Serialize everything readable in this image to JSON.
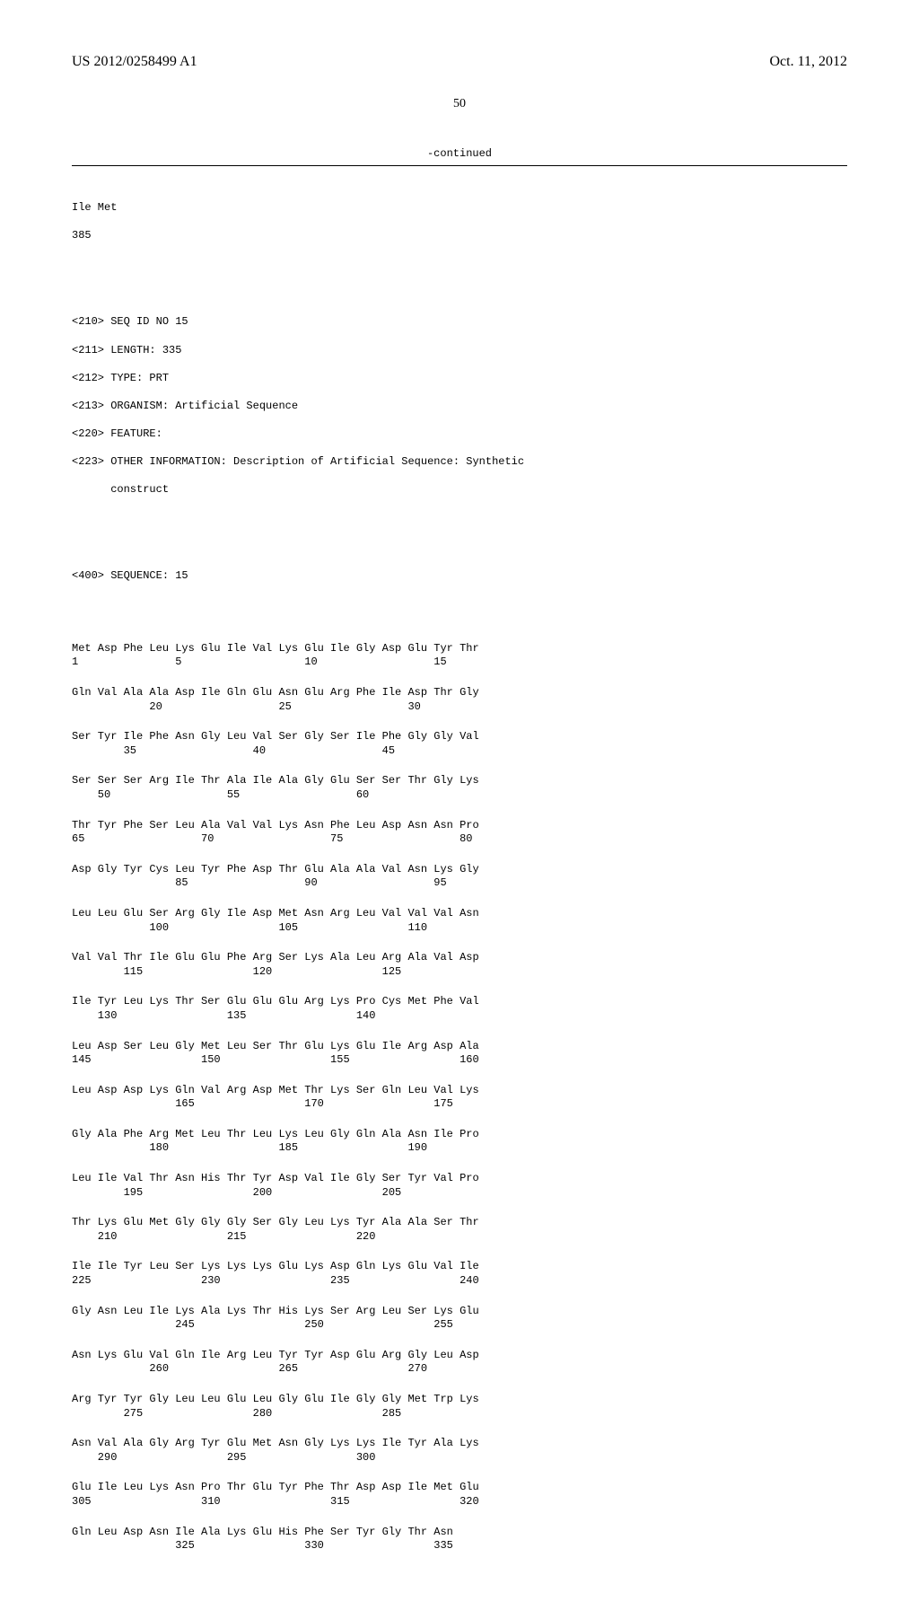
{
  "header": {
    "pub_id": "US 2012/0258499 A1",
    "pub_date": "Oct. 11, 2012"
  },
  "page_number": "50",
  "continued_label": "-continued",
  "preamble": {
    "residue_line": "Ile Met",
    "residue_num": "385"
  },
  "seq_header": {
    "seq_id": "<210> SEQ ID NO 15",
    "length": "<211> LENGTH: 335",
    "type": "<212> TYPE: PRT",
    "organism": "<213> ORGANISM: Artificial Sequence",
    "feature": "<220> FEATURE:",
    "other_info": "<223> OTHER INFORMATION: Description of Artificial Sequence: Synthetic",
    "other_info2": "      construct",
    "sequence_tag": "<400> SEQUENCE: 15"
  },
  "rows": [
    {
      "aa": "Met Asp Phe Leu Lys Glu Ile Val Lys Glu Ile Gly Asp Glu Tyr Thr",
      "nums": "1               5                   10                  15"
    },
    {
      "aa": "Gln Val Ala Ala Asp Ile Gln Glu Asn Glu Arg Phe Ile Asp Thr Gly",
      "nums": "            20                  25                  30"
    },
    {
      "aa": "Ser Tyr Ile Phe Asn Gly Leu Val Ser Gly Ser Ile Phe Gly Gly Val",
      "nums": "        35                  40                  45"
    },
    {
      "aa": "Ser Ser Ser Arg Ile Thr Ala Ile Ala Gly Glu Ser Ser Thr Gly Lys",
      "nums": "    50                  55                  60"
    },
    {
      "aa": "Thr Tyr Phe Ser Leu Ala Val Val Lys Asn Phe Leu Asp Asn Asn Pro",
      "nums": "65                  70                  75                  80"
    },
    {
      "aa": "Asp Gly Tyr Cys Leu Tyr Phe Asp Thr Glu Ala Ala Val Asn Lys Gly",
      "nums": "                85                  90                  95"
    },
    {
      "aa": "Leu Leu Glu Ser Arg Gly Ile Asp Met Asn Arg Leu Val Val Val Asn",
      "nums": "            100                 105                 110"
    },
    {
      "aa": "Val Val Thr Ile Glu Glu Phe Arg Ser Lys Ala Leu Arg Ala Val Asp",
      "nums": "        115                 120                 125"
    },
    {
      "aa": "Ile Tyr Leu Lys Thr Ser Glu Glu Glu Arg Lys Pro Cys Met Phe Val",
      "nums": "    130                 135                 140"
    },
    {
      "aa": "Leu Asp Ser Leu Gly Met Leu Ser Thr Glu Lys Glu Ile Arg Asp Ala",
      "nums": "145                 150                 155                 160"
    },
    {
      "aa": "Leu Asp Asp Lys Gln Val Arg Asp Met Thr Lys Ser Gln Leu Val Lys",
      "nums": "                165                 170                 175"
    },
    {
      "aa": "Gly Ala Phe Arg Met Leu Thr Leu Lys Leu Gly Gln Ala Asn Ile Pro",
      "nums": "            180                 185                 190"
    },
    {
      "aa": "Leu Ile Val Thr Asn His Thr Tyr Asp Val Ile Gly Ser Tyr Val Pro",
      "nums": "        195                 200                 205"
    },
    {
      "aa": "Thr Lys Glu Met Gly Gly Gly Ser Gly Leu Lys Tyr Ala Ala Ser Thr",
      "nums": "    210                 215                 220"
    },
    {
      "aa": "Ile Ile Tyr Leu Ser Lys Lys Lys Glu Lys Asp Gln Lys Glu Val Ile",
      "nums": "225                 230                 235                 240"
    },
    {
      "aa": "Gly Asn Leu Ile Lys Ala Lys Thr His Lys Ser Arg Leu Ser Lys Glu",
      "nums": "                245                 250                 255"
    },
    {
      "aa": "Asn Lys Glu Val Gln Ile Arg Leu Tyr Tyr Asp Glu Arg Gly Leu Asp",
      "nums": "            260                 265                 270"
    },
    {
      "aa": "Arg Tyr Tyr Gly Leu Leu Glu Leu Gly Glu Ile Gly Gly Met Trp Lys",
      "nums": "        275                 280                 285"
    },
    {
      "aa": "Asn Val Ala Gly Arg Tyr Glu Met Asn Gly Lys Lys Ile Tyr Ala Lys",
      "nums": "    290                 295                 300"
    },
    {
      "aa": "Glu Ile Leu Lys Asn Pro Thr Glu Tyr Phe Thr Asp Asp Ile Met Glu",
      "nums": "305                 310                 315                 320"
    },
    {
      "aa": "Gln Leu Asp Asn Ile Ala Lys Glu His Phe Ser Tyr Gly Thr Asn",
      "nums": "                325                 330                 335"
    }
  ]
}
